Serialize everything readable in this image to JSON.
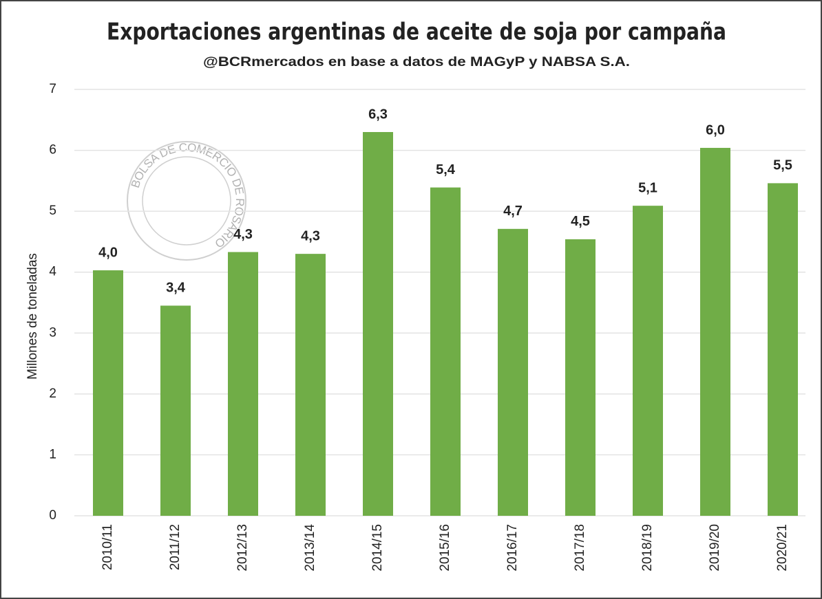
{
  "chart_data": {
    "type": "bar",
    "title": "Exportaciones argentinas de aceite de soja por campaña",
    "subtitle": "@BCRmercados en base a datos de MAGyP y NABSA S.A.",
    "y_label": "Millones de toneladas",
    "watermark": "BOLSA DE COMERCIO DE ROSARIO",
    "categories": [
      "2010/11",
      "2011/12",
      "2012/13",
      "2013/14",
      "2014/15",
      "2015/16",
      "2016/17",
      "2017/18",
      "2018/19",
      "2019/20",
      "2020/21"
    ],
    "values": [
      4.03,
      3.45,
      4.33,
      4.3,
      6.3,
      5.39,
      4.71,
      4.54,
      5.09,
      6.04,
      5.46
    ],
    "value_labels": [
      "4,0",
      "3,4",
      "4,3",
      "4,3",
      "6,3",
      "5,4",
      "4,7",
      "4,5",
      "5,1",
      "6,0",
      "5,5"
    ],
    "color": "#70ad47",
    "ylim": [
      0,
      7
    ],
    "yticks": [
      0,
      1,
      2,
      3,
      4,
      5,
      6,
      7
    ],
    "grid": true
  }
}
